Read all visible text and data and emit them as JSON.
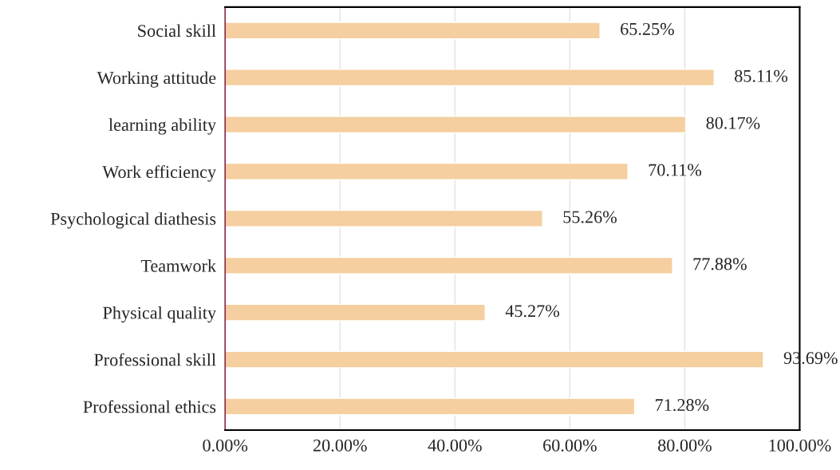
{
  "chart_data": {
    "type": "bar",
    "orientation": "horizontal",
    "categories": [
      "Social skill",
      "Working attitude",
      "learning ability",
      "Work efficiency",
      "Psychological diathesis",
      "Teamwork",
      "Physical quality",
      "Professional skill",
      "Professional ethics"
    ],
    "values": [
      65.25,
      85.11,
      80.17,
      70.11,
      55.26,
      77.88,
      45.27,
      93.69,
      71.28
    ],
    "value_labels": [
      "65.25%",
      "85.11%",
      "80.17%",
      "70.11%",
      "55.26%",
      "77.88%",
      "45.27%",
      "93.69%",
      "71.28%"
    ],
    "color": "#f5cfa0",
    "xlim": [
      0,
      100
    ],
    "xticks": [
      {
        "value": 0,
        "label": "0.00%"
      },
      {
        "value": 20,
        "label": "20.00%"
      },
      {
        "value": 40,
        "label": "40.00%"
      },
      {
        "value": 60,
        "label": "60.00%"
      },
      {
        "value": 80,
        "label": "80.00%"
      },
      {
        "value": 100,
        "label": "100.00%"
      }
    ],
    "grid": "x"
  }
}
